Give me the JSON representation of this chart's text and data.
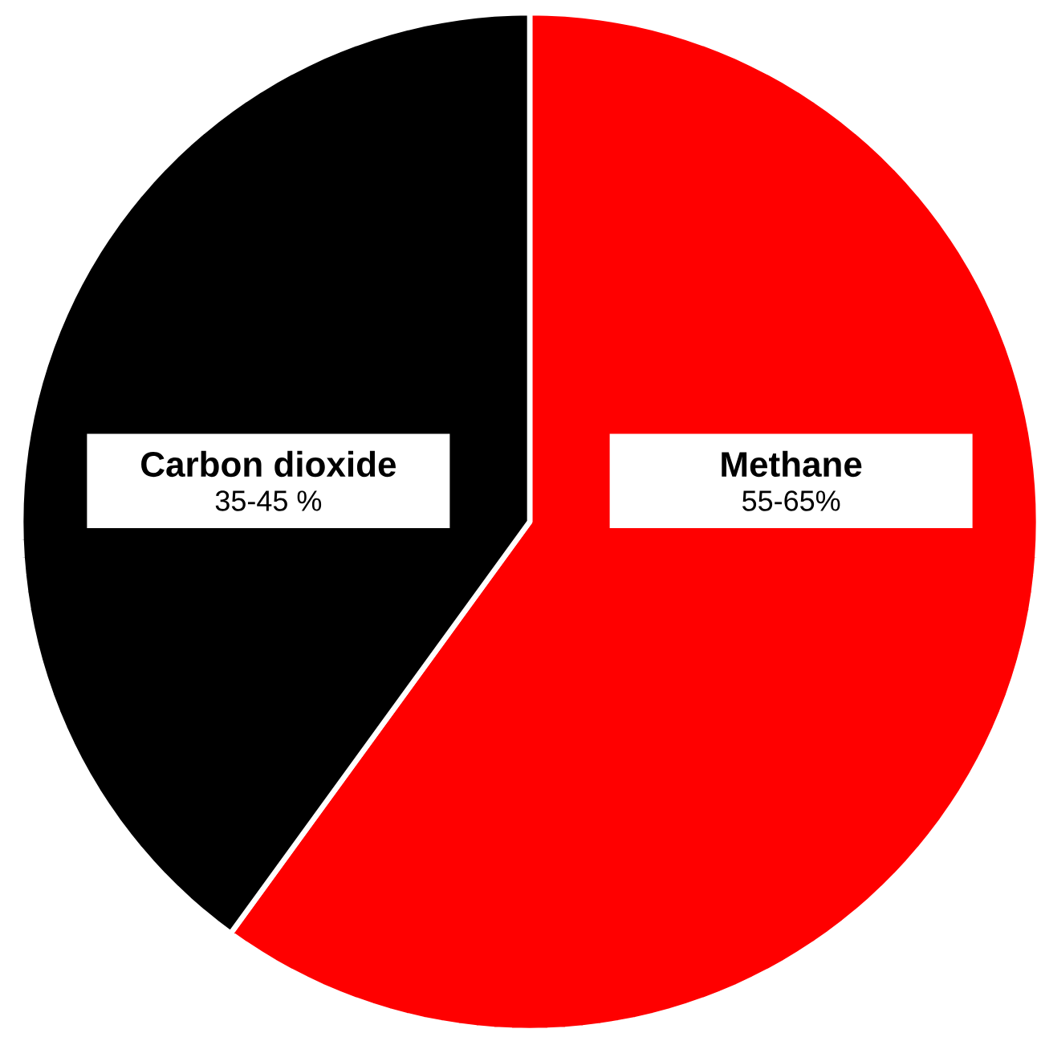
{
  "chart_data": {
    "type": "pie",
    "categories": [
      "Methane",
      "Carbon dioxide"
    ],
    "values": [
      60,
      40
    ],
    "colors": [
      "#ff0000",
      "#000000"
    ],
    "annotations": [
      "55-65%",
      "35-45 %"
    ]
  }
}
